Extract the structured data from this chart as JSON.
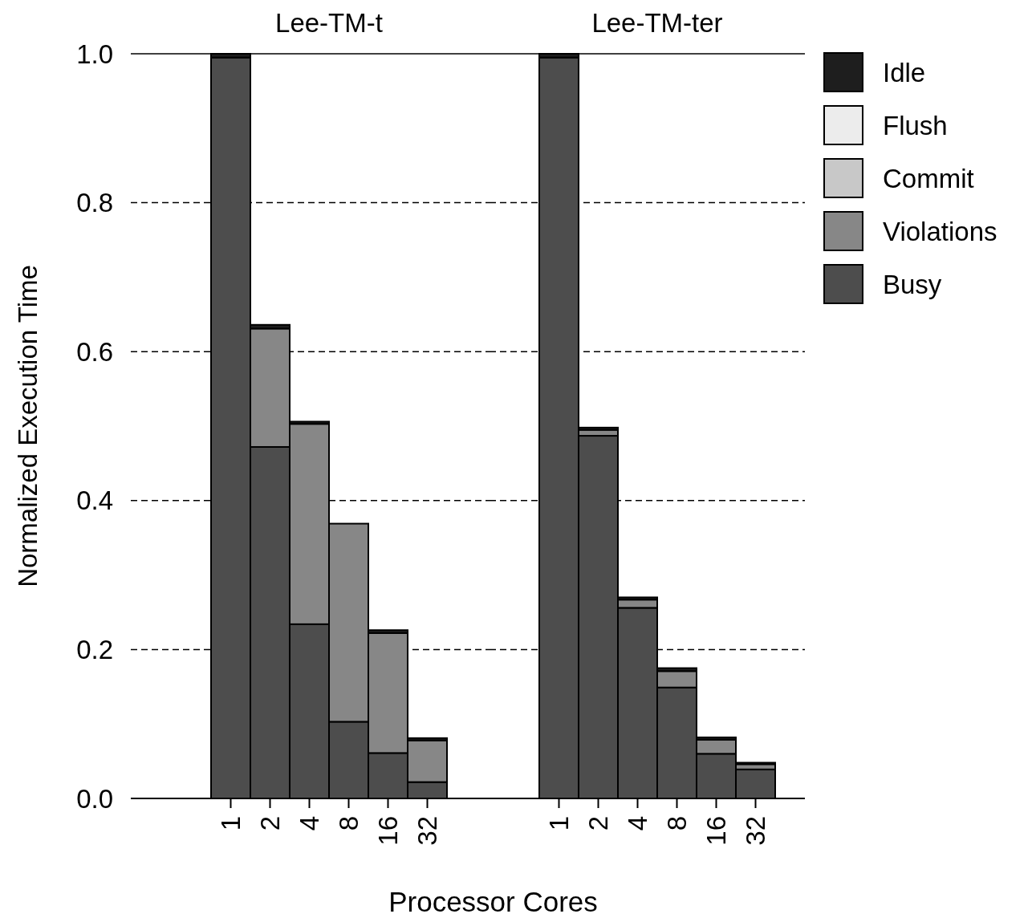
{
  "chart_data": [
    {
      "type": "bar",
      "title": "Lee-TM-t",
      "ylabel": "Normalized Execution Time",
      "xlabel": "Processor Cores",
      "stacked": true,
      "categories": [
        "1",
        "2",
        "4",
        "8",
        "16",
        "32"
      ],
      "series": [
        {
          "color": "#4d4d4d",
          "values": [
            0.995,
            0.472,
            0.234,
            0.103,
            0.061,
            0.022
          ]
        },
        {
          "color": "#878787",
          "values": [
            0,
            0.159,
            0.269,
            0.266,
            0.161,
            0.056
          ]
        },
        {
          "color": "#c8c8c8",
          "values": [
            0,
            0,
            0,
            0,
            0,
            0
          ]
        },
        {
          "color": "#ececec",
          "values": [
            0,
            0,
            0,
            0,
            0,
            0
          ]
        },
        {
          "color": "#1e1e1e",
          "values": [
            0.005,
            0.005,
            0.003,
            0,
            0.004,
            0.003
          ]
        }
      ],
      "ylim": [
        0,
        1
      ],
      "yticks": [
        {
          "value": 0,
          "label": "0.0"
        },
        0.2,
        0.4,
        0.6,
        0.8,
        {
          "value": 1,
          "label": "1.0"
        }
      ],
      "grid": "y",
      "legend": false
    },
    {
      "type": "bar",
      "title": "Lee-TM-ter",
      "stacked": true,
      "categories": [
        "1",
        "2",
        "4",
        "8",
        "16",
        "32"
      ],
      "series": [
        {
          "name": "Busy",
          "color": "#4d4d4d",
          "values": [
            0.995,
            0.487,
            0.256,
            0.149,
            0.06,
            0.039
          ]
        },
        {
          "name": "Violations",
          "color": "#878787",
          "values": [
            0,
            0.008,
            0.011,
            0.022,
            0.019,
            0.007
          ]
        },
        {
          "name": "Commit",
          "color": "#c8c8c8",
          "values": [
            0,
            0,
            0,
            0,
            0,
            0
          ]
        },
        {
          "name": "Flush",
          "color": "#ececec",
          "values": [
            0,
            0,
            0,
            0,
            0,
            0
          ]
        },
        {
          "name": "Idle",
          "color": "#1e1e1e",
          "values": [
            0.005,
            0.003,
            0.003,
            0.004,
            0.003,
            0.002
          ]
        }
      ],
      "ylim": [
        0,
        1
      ],
      "yticks": [
        0,
        0.2,
        0.4,
        0.6,
        0.8,
        1
      ],
      "grid": "y",
      "tick_labels": "x",
      "legend": "right"
    }
  ]
}
